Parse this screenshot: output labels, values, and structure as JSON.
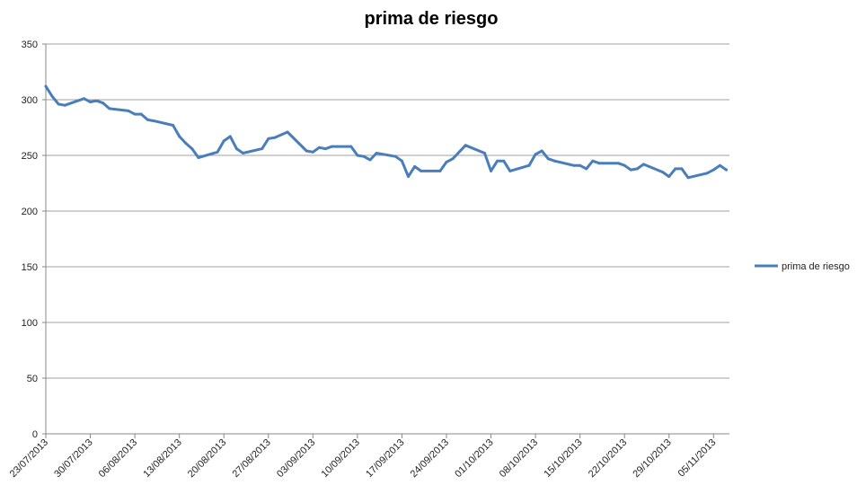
{
  "chart_data": {
    "type": "line",
    "title": "prima de riesgo",
    "xlabel": "",
    "ylabel": "",
    "ylim": [
      0,
      350
    ],
    "yticks": [
      0,
      50,
      100,
      150,
      200,
      250,
      300,
      350
    ],
    "grid": true,
    "legend": "right",
    "xticks": [
      "23/07/2013",
      "30/07/2013",
      "06/08/2013",
      "13/08/2013",
      "20/08/2013",
      "27/08/2013",
      "03/09/2013",
      "10/09/2013",
      "17/09/2013",
      "24/09/2013",
      "01/10/2013",
      "08/10/2013",
      "15/10/2013",
      "22/10/2013",
      "29/10/2013",
      "05/11/2013"
    ],
    "series": [
      {
        "name": "prima de riesgo",
        "color": "#4a7ebb",
        "x": [
          "2013-07-23",
          "2013-07-24",
          "2013-07-25",
          "2013-07-26",
          "2013-07-29",
          "2013-07-30",
          "2013-07-31",
          "2013-08-01",
          "2013-08-02",
          "2013-08-05",
          "2013-08-06",
          "2013-08-07",
          "2013-08-08",
          "2013-08-09",
          "2013-08-12",
          "2013-08-13",
          "2013-08-14",
          "2013-08-15",
          "2013-08-16",
          "2013-08-19",
          "2013-08-20",
          "2013-08-21",
          "2013-08-22",
          "2013-08-23",
          "2013-08-26",
          "2013-08-27",
          "2013-08-28",
          "2013-08-30",
          "2013-09-02",
          "2013-09-03",
          "2013-09-04",
          "2013-09-05",
          "2013-09-06",
          "2013-09-09",
          "2013-09-10",
          "2013-09-11",
          "2013-09-12",
          "2013-09-13",
          "2013-09-16",
          "2013-09-17",
          "2013-09-18",
          "2013-09-19",
          "2013-09-20",
          "2013-09-23",
          "2013-09-24",
          "2013-09-25",
          "2013-09-27",
          "2013-09-30",
          "2013-10-01",
          "2013-10-02",
          "2013-10-03",
          "2013-10-04",
          "2013-10-07",
          "2013-10-08",
          "2013-10-09",
          "2013-10-10",
          "2013-10-11",
          "2013-10-14",
          "2013-10-15",
          "2013-10-16",
          "2013-10-17",
          "2013-10-18",
          "2013-10-21",
          "2013-10-22",
          "2013-10-23",
          "2013-10-24",
          "2013-10-25",
          "2013-10-28",
          "2013-10-29",
          "2013-10-30",
          "2013-10-31",
          "2013-11-01",
          "2013-11-04",
          "2013-11-05",
          "2013-11-06",
          "2013-11-07"
        ],
        "values": [
          312,
          303,
          296,
          295,
          301,
          298,
          299,
          297,
          292,
          290,
          287,
          287,
          282,
          281,
          277,
          267,
          261,
          256,
          248,
          253,
          263,
          267,
          256,
          252,
          256,
          265,
          266,
          271,
          254,
          253,
          257,
          256,
          258,
          258,
          250,
          249,
          246,
          252,
          249,
          245,
          231,
          240,
          236,
          236,
          244,
          247,
          259,
          252,
          236,
          245,
          245,
          236,
          241,
          251,
          254,
          247,
          245,
          241,
          241,
          238,
          245,
          243,
          243,
          241,
          237,
          238,
          242,
          235,
          231,
          238,
          238,
          230,
          234,
          237,
          241,
          237
        ]
      }
    ]
  }
}
